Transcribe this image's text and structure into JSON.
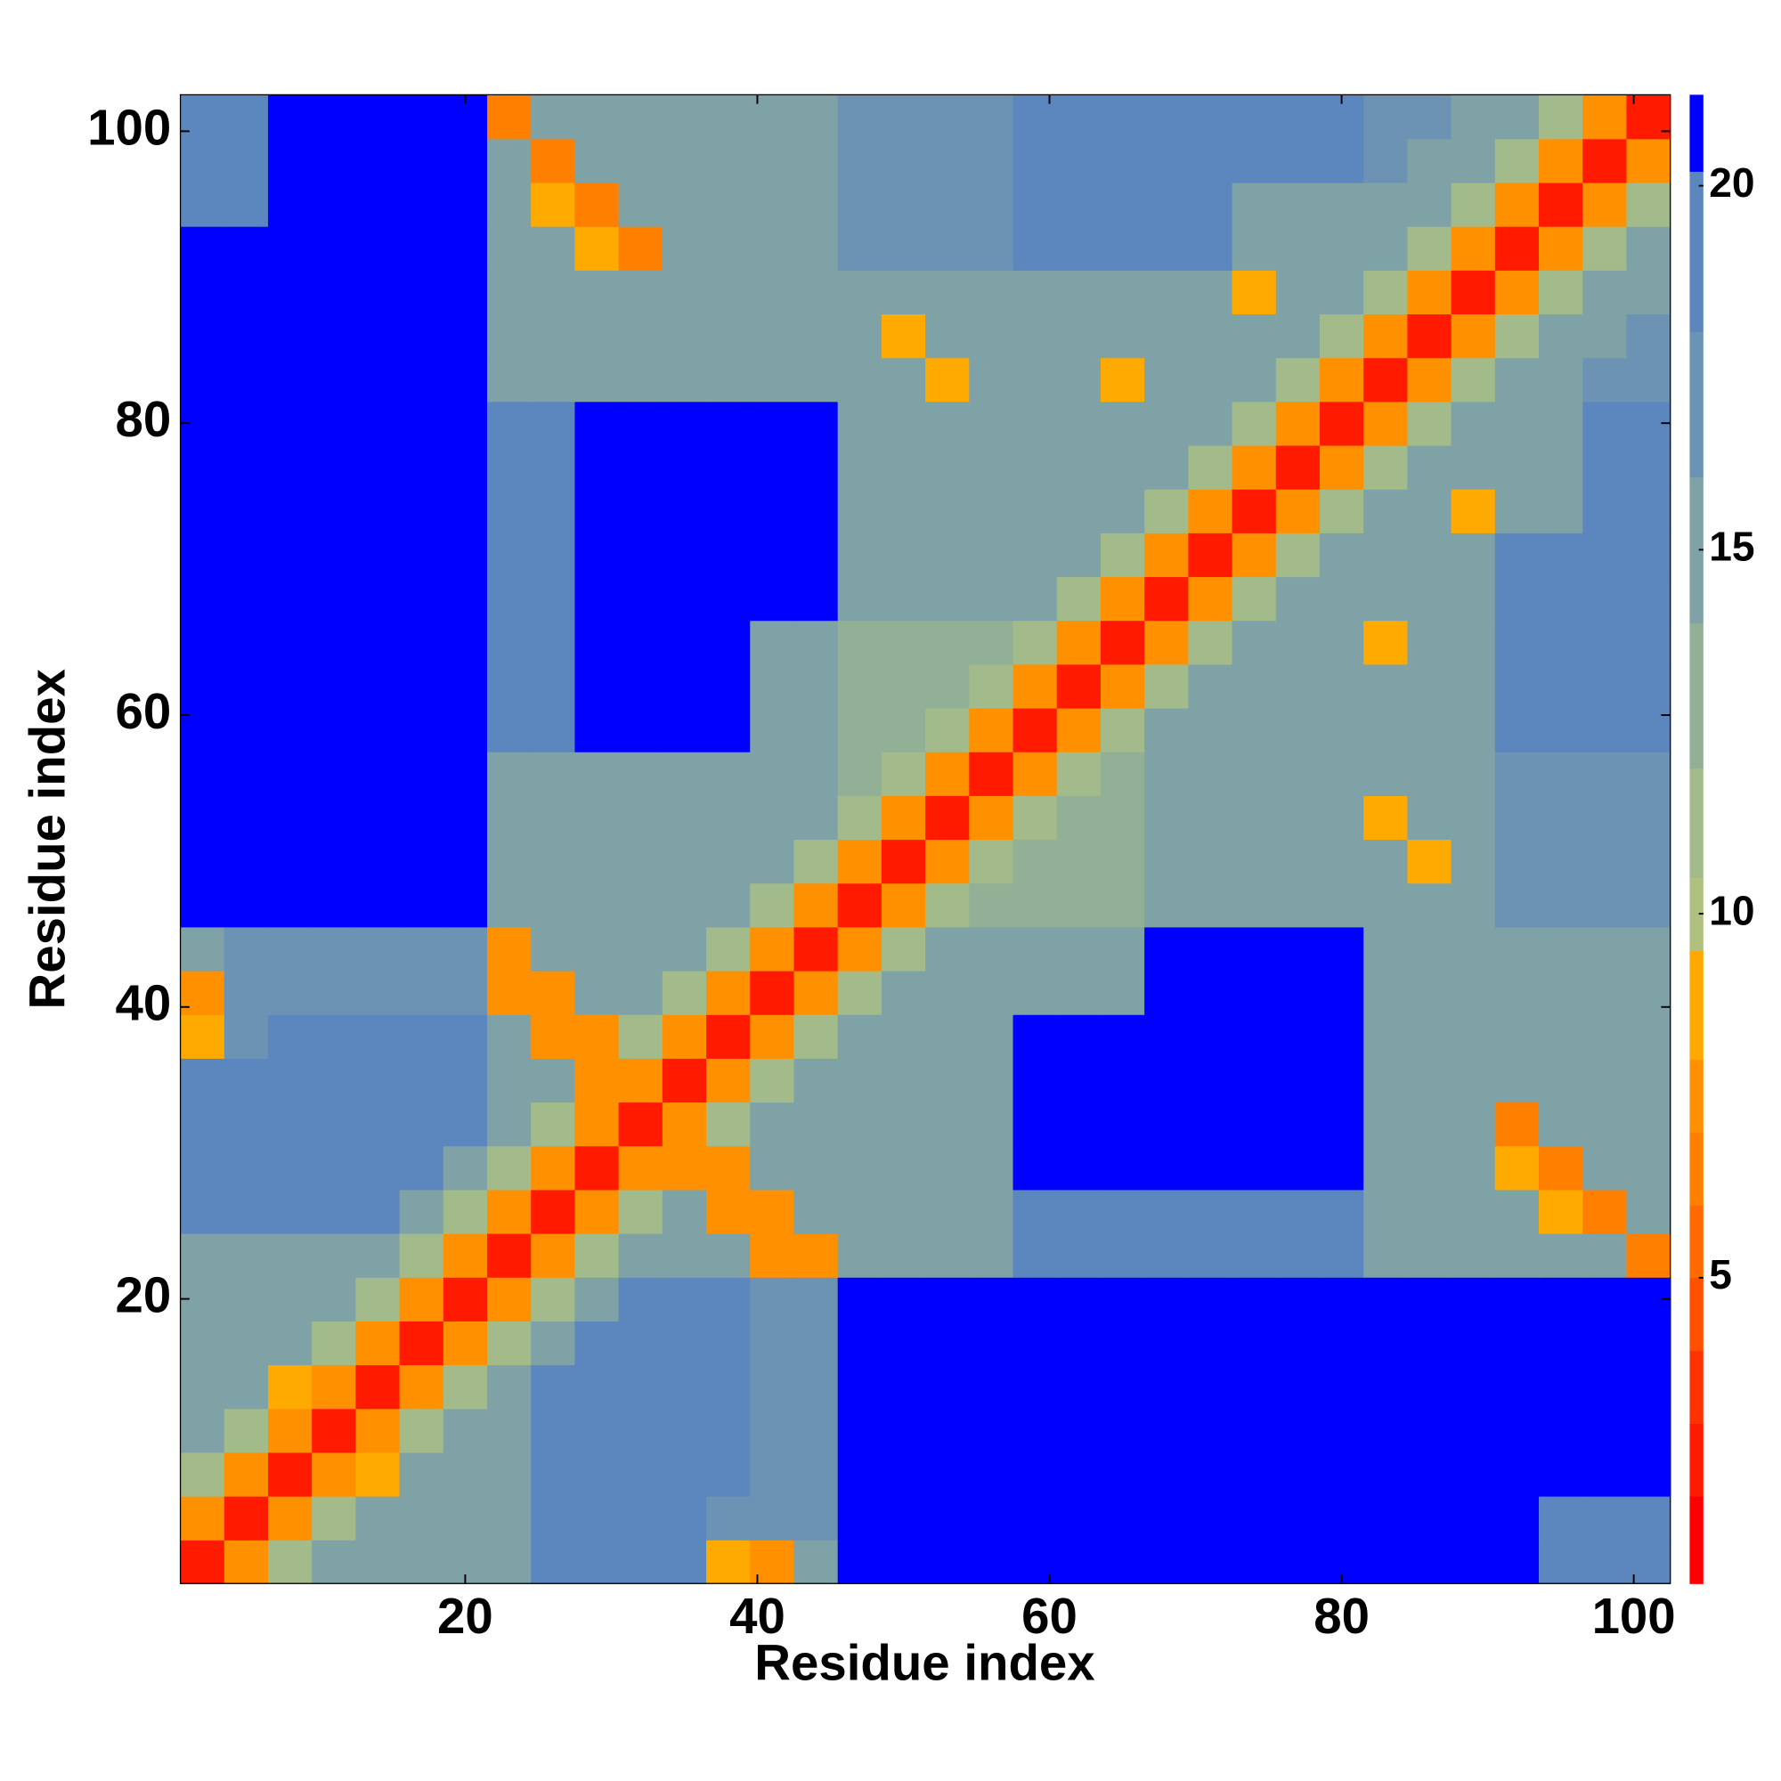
{
  "chart_data": {
    "type": "heatmap",
    "x_label": "Residue index",
    "y_label": "Residue index",
    "x": [
      2,
      5,
      8,
      11,
      14,
      17,
      20,
      23,
      26,
      29,
      32,
      35,
      38,
      41,
      44,
      47,
      50,
      53,
      56,
      59,
      62,
      65,
      68,
      71,
      74,
      77,
      80,
      83,
      86,
      89,
      92,
      95,
      98,
      101
    ],
    "y": [
      2,
      5,
      8,
      11,
      14,
      17,
      20,
      23,
      26,
      29,
      32,
      35,
      38,
      41,
      44,
      47,
      50,
      53,
      56,
      59,
      62,
      65,
      68,
      71,
      74,
      77,
      80,
      83,
      86,
      89,
      92,
      95,
      98,
      101
    ],
    "xlim": [
      0.5,
      102.5
    ],
    "ylim": [
      0.5,
      102.5
    ],
    "xticks": [
      20,
      40,
      60,
      80,
      100
    ],
    "yticks": [
      20,
      40,
      60,
      80,
      100
    ],
    "zlim": [
      0.8,
      21.25
    ],
    "zticks": [
      5,
      10,
      15,
      20
    ],
    "color_levels": [
      0.8,
      2,
      3,
      4,
      5,
      6,
      7,
      8,
      9.5,
      10.5,
      12,
      14,
      16,
      18,
      20.2,
      21.25
    ],
    "level_colors": [
      "#ff0000",
      "#ff1a00",
      "#ff3300",
      "#ff5000",
      "#ff6a00",
      "#ff8000",
      "#ff9000",
      "#ffaa00",
      "#b0c080",
      "#a3bb8a",
      "#92b096",
      "#7fa2a6",
      "#6c93b4",
      "#5c87be",
      "#0000ff"
    ],
    "z": [
      [
        2,
        7,
        11,
        14,
        15,
        15,
        15,
        15,
        18,
        18,
        18,
        18,
        9,
        7,
        14,
        21,
        21,
        21,
        21,
        21,
        21,
        21,
        21,
        21,
        21,
        21,
        21,
        21,
        21,
        21,
        21,
        19,
        19,
        19
      ],
      [
        7,
        2,
        7,
        11,
        14,
        15,
        15,
        15,
        18,
        18,
        18,
        18,
        17,
        17,
        17,
        21,
        21,
        21,
        21,
        21,
        21,
        21,
        21,
        21,
        21,
        21,
        21,
        21,
        21,
        21,
        21,
        19,
        19,
        19
      ],
      [
        11,
        7,
        2,
        7,
        8,
        14,
        15,
        15,
        18,
        18,
        18,
        18,
        18,
        17,
        17,
        21,
        21,
        21,
        21,
        21,
        21,
        21,
        21,
        21,
        21,
        21,
        21,
        21,
        21,
        21,
        21,
        21,
        21,
        21
      ],
      [
        14,
        11,
        7,
        2,
        7,
        11,
        14,
        15,
        18,
        18,
        18,
        18,
        18,
        17,
        17,
        21,
        21,
        21,
        21,
        21,
        21,
        21,
        21,
        21,
        21,
        21,
        21,
        21,
        21,
        21,
        21,
        21,
        21,
        21
      ],
      [
        15,
        14,
        8,
        7,
        2,
        7,
        11,
        14,
        18,
        18,
        18,
        18,
        18,
        17,
        17,
        21,
        21,
        21,
        21,
        21,
        21,
        21,
        21,
        21,
        21,
        21,
        21,
        21,
        21,
        21,
        21,
        21,
        21,
        21
      ],
      [
        15,
        15,
        14,
        11,
        7,
        2,
        7,
        11,
        14,
        18,
        18,
        18,
        18,
        17,
        17,
        21,
        21,
        21,
        21,
        21,
        21,
        21,
        21,
        21,
        21,
        21,
        21,
        21,
        21,
        21,
        21,
        21,
        21,
        21
      ],
      [
        15,
        15,
        15,
        14,
        11,
        7,
        2,
        7,
        11,
        14,
        18,
        18,
        18,
        17,
        17,
        21,
        21,
        21,
        21,
        21,
        21,
        21,
        21,
        21,
        21,
        21,
        21,
        21,
        21,
        21,
        21,
        21,
        21,
        21
      ],
      [
        15,
        15,
        15,
        15,
        14,
        11,
        7,
        2,
        7,
        11,
        14,
        15,
        15,
        7,
        7,
        15,
        15,
        15,
        15,
        18,
        18,
        18,
        18,
        18,
        18,
        18,
        18,
        14,
        14,
        14,
        14,
        14,
        14,
        6
      ],
      [
        18,
        18,
        18,
        18,
        18,
        14,
        11,
        7,
        2,
        7,
        11,
        14,
        7,
        7,
        15,
        15,
        15,
        15,
        15,
        18,
        18,
        18,
        18,
        18,
        18,
        18,
        18,
        14,
        14,
        14,
        14,
        9,
        6,
        14
      ],
      [
        18,
        18,
        18,
        18,
        18,
        18,
        14,
        11,
        7,
        2,
        7,
        7,
        7,
        15,
        15,
        14,
        14,
        14,
        14,
        21,
        21,
        21,
        21,
        21,
        21,
        21,
        21,
        15,
        15,
        15,
        9,
        6,
        15,
        15
      ],
      [
        18,
        18,
        18,
        18,
        18,
        18,
        18,
        14,
        11,
        7,
        2,
        7,
        11,
        14,
        15,
        14,
        14,
        14,
        14,
        21,
        21,
        21,
        21,
        21,
        21,
        21,
        21,
        15,
        15,
        15,
        6,
        15,
        15,
        15
      ],
      [
        18,
        18,
        18,
        18,
        18,
        18,
        18,
        15,
        14,
        7,
        7,
        2,
        7,
        11,
        14,
        14,
        14,
        14,
        14,
        21,
        21,
        21,
        21,
        21,
        21,
        21,
        21,
        15,
        15,
        15,
        15,
        15,
        15,
        15
      ],
      [
        9,
        17,
        18,
        18,
        18,
        18,
        18,
        15,
        7,
        7,
        11,
        7,
        2,
        7,
        11,
        14,
        14,
        14,
        14,
        21,
        21,
        21,
        21,
        21,
        21,
        21,
        21,
        15,
        15,
        15,
        15,
        15,
        15,
        15
      ],
      [
        7,
        17,
        17,
        17,
        17,
        17,
        17,
        7,
        7,
        15,
        14,
        11,
        7,
        2,
        7,
        11,
        14,
        14,
        14,
        14,
        14,
        14,
        21,
        21,
        21,
        21,
        21,
        15,
        15,
        15,
        15,
        15,
        15,
        15
      ],
      [
        14,
        17,
        17,
        17,
        17,
        17,
        17,
        7,
        15,
        15,
        15,
        14,
        11,
        7,
        2,
        7,
        11,
        14,
        14,
        14,
        14,
        14,
        21,
        21,
        21,
        21,
        21,
        15,
        15,
        15,
        15,
        15,
        15,
        15
      ],
      [
        21,
        21,
        21,
        21,
        21,
        21,
        21,
        15,
        15,
        14,
        14,
        14,
        14,
        11,
        7,
        2,
        7,
        11,
        13,
        12,
        12,
        12,
        15,
        15,
        15,
        15,
        15,
        15,
        15,
        15,
        16,
        16,
        16,
        16
      ],
      [
        21,
        21,
        21,
        21,
        21,
        21,
        21,
        15,
        15,
        14,
        14,
        14,
        14,
        14,
        11,
        7,
        2,
        7,
        11,
        12,
        12,
        12,
        15,
        15,
        15,
        15,
        15,
        15,
        9,
        15,
        16,
        16,
        16,
        16
      ],
      [
        21,
        21,
        21,
        21,
        21,
        21,
        21,
        15,
        15,
        14,
        14,
        14,
        14,
        14,
        14,
        11,
        7,
        2,
        7,
        11,
        12,
        12,
        15,
        15,
        15,
        15,
        15,
        9,
        15,
        15,
        16,
        16,
        16,
        16
      ],
      [
        21,
        21,
        21,
        21,
        21,
        21,
        21,
        15,
        15,
        14,
        14,
        14,
        14,
        14,
        14,
        13,
        11,
        7,
        2,
        7,
        11,
        12,
        15,
        15,
        15,
        15,
        15,
        15,
        15,
        15,
        16,
        16,
        16,
        16
      ],
      [
        21,
        21,
        21,
        21,
        21,
        21,
        21,
        18,
        18,
        21,
        21,
        21,
        21,
        14,
        14,
        12,
        12,
        11,
        7,
        2,
        7,
        11,
        14,
        15,
        15,
        15,
        15,
        15,
        15,
        15,
        18,
        18,
        20,
        20
      ],
      [
        21,
        21,
        21,
        21,
        21,
        21,
        21,
        18,
        18,
        21,
        21,
        21,
        21,
        14,
        14,
        12,
        12,
        12,
        11,
        7,
        2,
        7,
        11,
        14,
        15,
        15,
        15,
        15,
        15,
        15,
        18,
        18,
        20,
        20
      ],
      [
        21,
        21,
        21,
        21,
        21,
        21,
        21,
        18,
        18,
        21,
        21,
        21,
        21,
        14,
        14,
        12,
        12,
        12,
        12,
        11,
        7,
        2,
        7,
        11,
        14,
        15,
        15,
        9,
        15,
        15,
        18,
        18,
        20,
        20
      ],
      [
        21,
        21,
        21,
        21,
        21,
        21,
        21,
        18,
        18,
        21,
        21,
        21,
        21,
        21,
        21,
        15,
        15,
        15,
        15,
        14,
        11,
        7,
        2,
        7,
        11,
        14,
        15,
        15,
        15,
        15,
        18,
        18,
        20,
        20
      ],
      [
        21,
        21,
        21,
        21,
        21,
        21,
        21,
        18,
        18,
        21,
        21,
        21,
        21,
        21,
        21,
        15,
        15,
        15,
        15,
        15,
        14,
        11,
        7,
        2,
        7,
        11,
        14,
        15,
        15,
        15,
        18,
        18,
        20,
        20
      ],
      [
        21,
        21,
        21,
        21,
        21,
        21,
        21,
        18,
        18,
        21,
        21,
        21,
        21,
        21,
        21,
        15,
        15,
        15,
        15,
        15,
        15,
        14,
        11,
        7,
        2,
        7,
        11,
        14,
        15,
        9,
        15,
        15,
        20,
        20
      ],
      [
        21,
        21,
        21,
        21,
        21,
        21,
        21,
        18,
        18,
        21,
        21,
        21,
        21,
        21,
        21,
        15,
        15,
        15,
        15,
        15,
        15,
        15,
        14,
        11,
        7,
        2,
        7,
        11,
        14,
        15,
        15,
        15,
        20,
        20
      ],
      [
        21,
        21,
        21,
        21,
        21,
        21,
        21,
        18,
        18,
        21,
        21,
        21,
        21,
        21,
        21,
        15,
        15,
        15,
        15,
        15,
        15,
        15,
        15,
        14,
        11,
        7,
        2,
        7,
        11,
        14,
        15,
        15,
        18,
        18
      ],
      [
        21,
        21,
        21,
        21,
        21,
        21,
        21,
        14,
        14,
        15,
        15,
        15,
        15,
        15,
        15,
        15,
        15,
        9,
        15,
        15,
        15,
        9,
        15,
        15,
        14,
        11,
        7,
        2,
        7,
        11,
        14,
        15,
        16,
        16
      ],
      [
        21,
        21,
        21,
        21,
        21,
        21,
        21,
        14,
        14,
        15,
        15,
        15,
        15,
        15,
        15,
        15,
        9,
        15,
        15,
        15,
        15,
        15,
        15,
        15,
        15,
        14,
        11,
        7,
        2,
        7,
        11,
        14,
        15,
        16
      ],
      [
        21,
        21,
        21,
        21,
        21,
        21,
        21,
        14,
        14,
        15,
        15,
        15,
        15,
        15,
        15,
        15,
        15,
        15,
        15,
        15,
        15,
        15,
        15,
        15,
        9,
        15,
        14,
        11,
        7,
        2,
        7,
        11,
        14,
        15
      ],
      [
        21,
        21,
        21,
        21,
        21,
        21,
        21,
        14,
        14,
        9,
        6,
        15,
        15,
        15,
        15,
        16,
        16,
        16,
        16,
        18,
        18,
        18,
        18,
        18,
        15,
        15,
        15,
        14,
        11,
        7,
        2,
        7,
        11,
        14
      ],
      [
        19,
        19,
        21,
        21,
        21,
        21,
        21,
        14,
        9,
        6,
        15,
        15,
        15,
        15,
        15,
        16,
        16,
        16,
        16,
        18,
        18,
        18,
        18,
        18,
        15,
        15,
        15,
        15,
        14,
        11,
        7,
        2,
        7,
        11
      ],
      [
        19,
        19,
        21,
        21,
        21,
        21,
        21,
        14,
        6,
        15,
        15,
        15,
        15,
        15,
        15,
        16,
        16,
        16,
        16,
        20,
        20,
        20,
        20,
        20,
        20,
        20,
        18,
        16,
        15,
        14,
        11,
        7,
        2,
        7
      ],
      [
        19,
        19,
        21,
        21,
        21,
        21,
        21,
        6,
        14,
        15,
        15,
        15,
        15,
        15,
        15,
        16,
        16,
        16,
        16,
        20,
        20,
        20,
        20,
        20,
        20,
        20,
        18,
        16,
        16,
        15,
        14,
        11,
        7,
        2
      ]
    ]
  }
}
